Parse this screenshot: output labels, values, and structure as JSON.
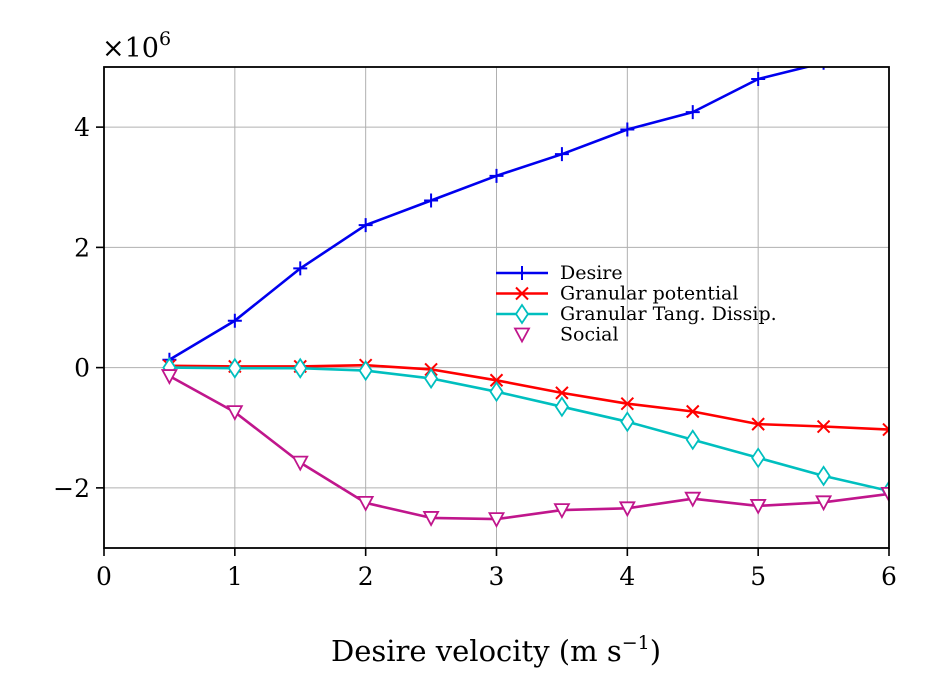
{
  "chart_data": {
    "type": "line",
    "title": "",
    "xlabel": "Desire velocity (m s",
    "xlabel_sup": "−1",
    "xlabel_suffix": ")",
    "ylabel": "",
    "y_multiplier": "×10",
    "y_multiplier_exp": "6",
    "xlim": [
      0,
      6
    ],
    "ylim": [
      -3.0,
      5.0
    ],
    "x_ticks": [
      0,
      1,
      2,
      3,
      4,
      5,
      6
    ],
    "y_ticks": [
      -2,
      0,
      2,
      4
    ],
    "x_tick_labels": [
      "0",
      "1",
      "2",
      "3",
      "4",
      "5",
      "6"
    ],
    "y_tick_labels": [
      "−2",
      "0",
      "2",
      "4"
    ],
    "grid": true,
    "legend_position": "center-right",
    "x": [
      0.5,
      1.0,
      1.5,
      2.0,
      2.5,
      3.0,
      3.5,
      4.0,
      4.5,
      5.0,
      5.5,
      6.0
    ],
    "series": [
      {
        "name": "Desire",
        "color": "#0000ee",
        "marker": "plus",
        "values": [
          0.13,
          0.78,
          1.65,
          2.37,
          2.78,
          3.19,
          3.55,
          3.96,
          4.25,
          4.8,
          5.07,
          5.3
        ]
      },
      {
        "name": "Granular potential",
        "color": "#ff0000",
        "marker": "x",
        "values": [
          0.03,
          0.02,
          0.02,
          0.04,
          -0.03,
          -0.21,
          -0.42,
          -0.6,
          -0.73,
          -0.94,
          -0.98,
          -1.03
        ]
      },
      {
        "name": "Granular Tang. Dissip.",
        "color": "#00bfbf",
        "marker": "diamond",
        "values": [
          0.0,
          -0.01,
          -0.01,
          -0.05,
          -0.18,
          -0.4,
          -0.65,
          -0.9,
          -1.2,
          -1.5,
          -1.8,
          -2.05
        ]
      },
      {
        "name": "Social",
        "color": "#c0168c",
        "marker": "triangle-down",
        "values": [
          -0.14,
          -0.74,
          -1.58,
          -2.25,
          -2.5,
          -2.52,
          -2.37,
          -2.34,
          -2.18,
          -2.3,
          -2.24,
          -2.1
        ]
      }
    ]
  }
}
